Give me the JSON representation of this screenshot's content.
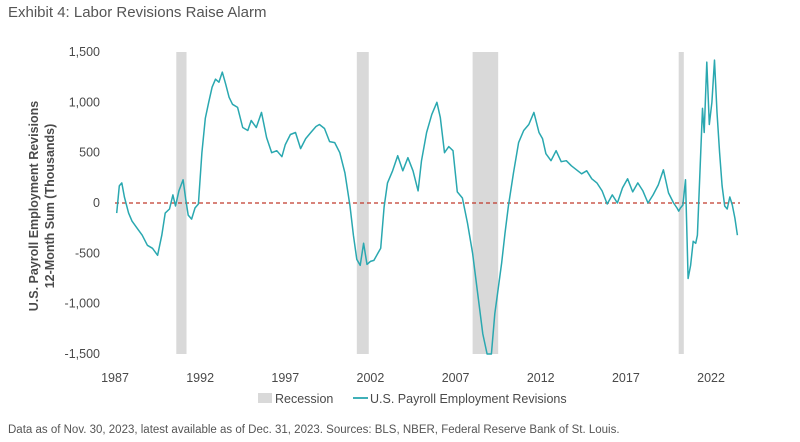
{
  "title": "Exhibit 4: Labor Revisions Raise Alarm",
  "footnote": "Data as of Nov. 30, 2023, latest available as of Dec. 31, 2023. Sources: BLS, NBER, Federal Reserve Bank of St. Louis.",
  "chart_data": {
    "type": "line",
    "title": "Exhibit 4: Labor Revisions Raise Alarm",
    "ylabel_line1": "U.S. Payroll Employment Revisions",
    "ylabel_line2": "12-Month Sum (Thousands)",
    "ylim": [
      -1500,
      1500
    ],
    "xlim": [
      1987,
      2023.7
    ],
    "yticks": [
      -1500,
      -1000,
      -500,
      0,
      500,
      1000,
      1500
    ],
    "ytick_labels": [
      "-1,500",
      "-1,000",
      "-500",
      "0",
      "500",
      "1,000",
      "1,500"
    ],
    "xticks": [
      1987,
      1992,
      1997,
      2002,
      2007,
      2012,
      2017,
      2022
    ],
    "xtick_labels": [
      "1987",
      "1992",
      "1997",
      "2002",
      "2007",
      "2012",
      "2017",
      "2022"
    ],
    "grid": false,
    "zero_line": {
      "style": "dashed",
      "color": "#c0392b"
    },
    "legend_position": "bottom",
    "colors": {
      "series": "#2aa8b0",
      "recession": "#d9d9d9",
      "zero_line": "#c0392b"
    },
    "recessions": [
      {
        "name": "Recession",
        "start": 1990.6,
        "end": 1991.2
      },
      {
        "name": "Recession",
        "start": 2001.2,
        "end": 2001.9
      },
      {
        "name": "Recession",
        "start": 2008.0,
        "end": 2009.5
      },
      {
        "name": "Recession",
        "start": 2020.1,
        "end": 2020.4
      }
    ],
    "legend": [
      "Recession",
      "U.S. Payroll Employment Revisions"
    ],
    "series": [
      {
        "name": "U.S. Payroll Employment Revisions",
        "x": [
          1987.1,
          1987.25,
          1987.4,
          1987.55,
          1987.8,
          1988.0,
          1988.3,
          1988.6,
          1988.9,
          1989.2,
          1989.5,
          1989.75,
          1989.95,
          1990.2,
          1990.4,
          1990.55,
          1990.75,
          1991.0,
          1991.15,
          1991.3,
          1991.5,
          1991.7,
          1991.9,
          1992.1,
          1992.3,
          1992.5,
          1992.7,
          1992.9,
          1993.1,
          1993.3,
          1993.5,
          1993.7,
          1993.9,
          1994.2,
          1994.5,
          1994.8,
          1995.0,
          1995.3,
          1995.6,
          1995.9,
          1996.2,
          1996.5,
          1996.8,
          1997.0,
          1997.3,
          1997.6,
          1997.9,
          1998.2,
          1998.5,
          1998.8,
          1999.0,
          1999.3,
          1999.6,
          1999.9,
          2000.2,
          2000.5,
          2000.8,
          2001.0,
          2001.2,
          2001.4,
          2001.6,
          2001.8,
          2002.0,
          2002.2,
          2002.4,
          2002.6,
          2002.8,
          2003.0,
          2003.3,
          2003.6,
          2003.9,
          2004.2,
          2004.5,
          2004.8,
          2005.0,
          2005.3,
          2005.6,
          2005.9,
          2006.1,
          2006.35,
          2006.6,
          2006.85,
          2007.1,
          2007.4,
          2007.7,
          2008.0,
          2008.3,
          2008.6,
          2008.85,
          2009.1,
          2009.3,
          2009.5,
          2009.7,
          2009.9,
          2010.1,
          2010.4,
          2010.7,
          2011.0,
          2011.3,
          2011.6,
          2011.9,
          2012.1,
          2012.3,
          2012.6,
          2012.9,
          2013.2,
          2013.5,
          2013.8,
          2014.1,
          2014.4,
          2014.7,
          2015.0,
          2015.3,
          2015.6,
          2015.9,
          2016.2,
          2016.5,
          2016.8,
          2017.1,
          2017.4,
          2017.7,
          2018.0,
          2018.3,
          2018.6,
          2018.9,
          2019.2,
          2019.5,
          2019.8,
          2020.0,
          2020.1,
          2020.2,
          2020.35,
          2020.5,
          2020.65,
          2020.8,
          2020.95,
          2021.1,
          2021.2,
          2021.35,
          2021.5,
          2021.6,
          2021.75,
          2021.9,
          2022.05,
          2022.2,
          2022.35,
          2022.5,
          2022.65,
          2022.8,
          2022.95,
          2023.1,
          2023.25,
          2023.4,
          2023.55
        ],
        "values": [
          -100,
          170,
          200,
          60,
          -100,
          -180,
          -250,
          -320,
          -420,
          -450,
          -520,
          -320,
          -100,
          -60,
          80,
          -30,
          120,
          230,
          40,
          -120,
          -160,
          -50,
          -10,
          500,
          840,
          1000,
          1150,
          1230,
          1200,
          1300,
          1180,
          1050,
          980,
          950,
          750,
          720,
          820,
          750,
          900,
          650,
          500,
          520,
          460,
          580,
          680,
          700,
          540,
          640,
          700,
          760,
          780,
          740,
          610,
          600,
          500,
          300,
          -30,
          -320,
          -560,
          -620,
          -400,
          -610,
          -580,
          -570,
          -510,
          -450,
          -40,
          200,
          320,
          470,
          320,
          450,
          320,
          120,
          420,
          700,
          880,
          1000,
          850,
          500,
          560,
          520,
          110,
          50,
          -200,
          -500,
          -900,
          -1300,
          -1520,
          -1520,
          -1100,
          -850,
          -600,
          -300,
          -30,
          300,
          600,
          720,
          780,
          900,
          700,
          640,
          490,
          420,
          520,
          410,
          420,
          370,
          330,
          290,
          320,
          240,
          200,
          120,
          -10,
          80,
          0,
          150,
          240,
          110,
          200,
          120,
          0,
          80,
          180,
          330,
          100,
          0,
          -50,
          -80,
          -50,
          -20,
          230,
          -750,
          -620,
          -380,
          -400,
          -320,
          320,
          940,
          700,
          1400,
          780,
          1000,
          1420,
          900,
          500,
          170,
          -30,
          -60,
          60,
          -20,
          -150,
          -320
        ]
      }
    ]
  }
}
